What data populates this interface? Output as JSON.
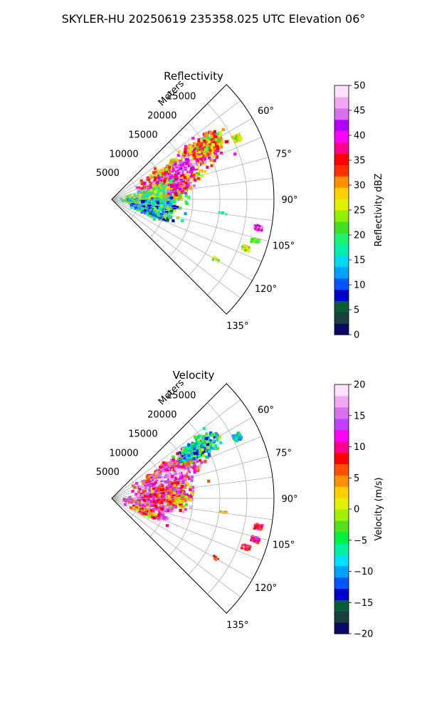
{
  "title": "SKYLER-HU  20250619  235358.025 UTC Elevation 06°",
  "chart_data": [
    {
      "type": "heatmap",
      "projection": "polar-sector",
      "title": "Reflectivity",
      "radial_label": "Meters",
      "radial_ticks": [
        5000,
        10000,
        15000,
        20000,
        25000
      ],
      "rmax": 30000,
      "azimuth_range": [
        45,
        135
      ],
      "azimuth_ticks": [
        60,
        75,
        90,
        105,
        120,
        135
      ],
      "grid": true,
      "colorbar": {
        "label": "Reflectivity dBZ",
        "vmin": 0,
        "vmax": 50,
        "ticks": [
          0,
          5,
          10,
          15,
          20,
          25,
          30,
          35,
          40,
          45,
          50
        ],
        "colors": [
          "#0a0a66",
          "#1a3d3d",
          "#0a5c3a",
          "#0000cc",
          "#0055ff",
          "#00a0ff",
          "#00d8f0",
          "#00f0b0",
          "#20f070",
          "#40e020",
          "#90f000",
          "#e0f000",
          "#ffd000",
          "#ff9000",
          "#ff3000",
          "#ff0000",
          "#ff0090",
          "#ff00ff",
          "#b000ff",
          "#d870f0",
          "#f0a8f0",
          "#ffe0ff"
        ]
      }
    },
    {
      "type": "heatmap",
      "projection": "polar-sector",
      "title": "Velocity",
      "radial_label": "Meters",
      "radial_ticks": [
        5000,
        10000,
        15000,
        20000,
        25000
      ],
      "rmax": 30000,
      "azimuth_range": [
        45,
        135
      ],
      "azimuth_ticks": [
        60,
        75,
        90,
        105,
        120,
        135
      ],
      "grid": true,
      "colorbar": {
        "label": "Velocity (m/s)",
        "vmin": -20,
        "vmax": 20,
        "ticks": [
          -20,
          -15,
          -10,
          -5,
          0,
          5,
          10,
          15,
          20
        ],
        "colors": [
          "#0a0a66",
          "#1a3d3d",
          "#0a5c3a",
          "#0000cc",
          "#0055ff",
          "#00a0ff",
          "#00e0ff",
          "#00f0a0",
          "#00f040",
          "#50e020",
          "#a0f000",
          "#e0f000",
          "#ffd000",
          "#ff9000",
          "#ff5000",
          "#ff0000",
          "#ff0090",
          "#ff00ff",
          "#c040ff",
          "#d870f0",
          "#f0a8f0",
          "#ffe0ff"
        ]
      }
    }
  ]
}
